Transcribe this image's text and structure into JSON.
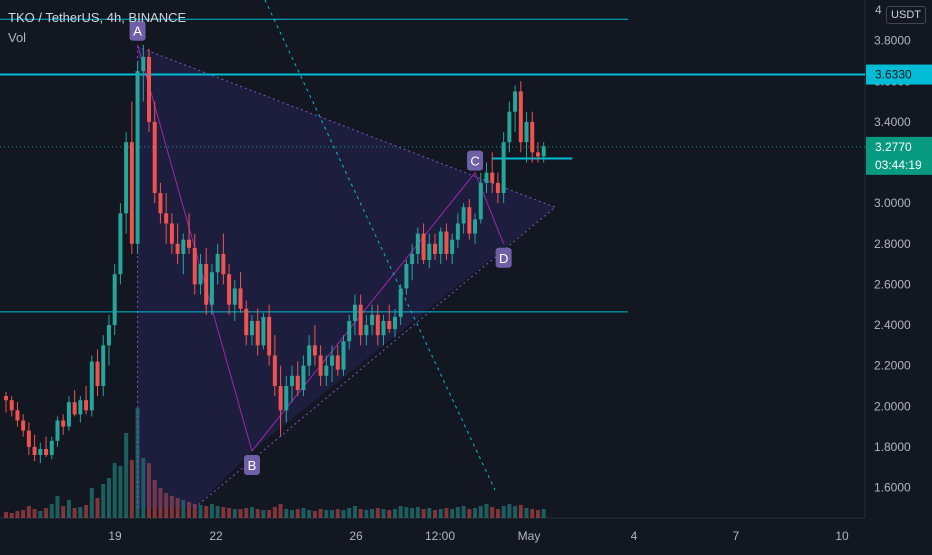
{
  "legend": {
    "title": "TKO / TetherUS, 4h, BINANCE",
    "vol": "Vol"
  },
  "currency": "USDT",
  "chart_data": {
    "type": "candlestick",
    "ylim": [
      1.45,
      4.0
    ],
    "y_ticks": [
      1.6,
      1.8,
      2.0,
      2.2,
      2.4,
      2.6,
      2.8,
      3.0,
      3.2,
      3.4,
      3.6,
      3.8
    ],
    "y_tick_labels": [
      "1.6000",
      "1.8000",
      "2.0000",
      "2.2000",
      "2.4000",
      "2.6000",
      "2.8000",
      "3.0000",
      "3.2000",
      "3.4000",
      "3.6000",
      "3.8000"
    ],
    "top_tick_label": "4",
    "x_ticks": [
      "19",
      "22",
      "26",
      "12:00",
      "May",
      "4",
      "7",
      "10"
    ],
    "current_price": {
      "label": "3.2770",
      "countdown": "03:44:19",
      "value": 3.277,
      "color": "#089981"
    },
    "level_price": {
      "label": "3.6330",
      "value": 3.633,
      "color": "#00bcd4"
    },
    "horizontal_levels": [
      3.905,
      3.633,
      2.465
    ],
    "pattern_points": [
      {
        "label": "A",
        "price": 3.78
      },
      {
        "label": "B",
        "price": 1.78
      },
      {
        "label": "C",
        "price": 3.15
      },
      {
        "label": "D",
        "price": 2.8
      }
    ],
    "colors": {
      "up": "#26a69a",
      "down": "#ef5350",
      "pattern": "#9c27b0",
      "levels": "#00bcd4"
    },
    "candles": [
      [
        2.05,
        2.07,
        1.97,
        2.03
      ],
      [
        2.03,
        2.05,
        1.95,
        1.98
      ],
      [
        1.98,
        2.02,
        1.9,
        1.93
      ],
      [
        1.93,
        1.96,
        1.85,
        1.88
      ],
      [
        1.88,
        1.92,
        1.76,
        1.8
      ],
      [
        1.8,
        1.86,
        1.73,
        1.76
      ],
      [
        1.76,
        1.82,
        1.72,
        1.79
      ],
      [
        1.79,
        1.85,
        1.75,
        1.76
      ],
      [
        1.76,
        1.85,
        1.74,
        1.83
      ],
      [
        1.83,
        1.95,
        1.8,
        1.93
      ],
      [
        1.93,
        1.96,
        1.86,
        1.9
      ],
      [
        1.9,
        2.05,
        1.88,
        2.02
      ],
      [
        2.02,
        2.08,
        1.95,
        1.96
      ],
      [
        1.96,
        2.05,
        1.92,
        2.03
      ],
      [
        2.03,
        2.1,
        1.96,
        1.98
      ],
      [
        1.98,
        2.25,
        1.95,
        2.22
      ],
      [
        2.22,
        2.28,
        2.05,
        2.1
      ],
      [
        2.1,
        2.35,
        2.05,
        2.3
      ],
      [
        2.3,
        2.45,
        2.2,
        2.4
      ],
      [
        2.4,
        2.7,
        2.35,
        2.65
      ],
      [
        2.65,
        3.0,
        2.6,
        2.95
      ],
      [
        2.95,
        3.35,
        2.85,
        3.3
      ],
      [
        3.3,
        3.5,
        2.75,
        2.8
      ],
      [
        2.8,
        3.7,
        2.75,
        3.65
      ],
      [
        3.65,
        3.78,
        3.5,
        3.72
      ],
      [
        3.72,
        3.76,
        3.35,
        3.4
      ],
      [
        3.4,
        3.5,
        3.0,
        3.05
      ],
      [
        3.05,
        3.1,
        2.9,
        2.95
      ],
      [
        2.95,
        3.05,
        2.8,
        2.9
      ],
      [
        2.9,
        2.95,
        2.75,
        2.8
      ],
      [
        2.8,
        2.9,
        2.7,
        2.75
      ],
      [
        2.75,
        2.85,
        2.65,
        2.82
      ],
      [
        2.82,
        2.95,
        2.75,
        2.78
      ],
      [
        2.78,
        2.85,
        2.55,
        2.6
      ],
      [
        2.6,
        2.75,
        2.55,
        2.7
      ],
      [
        2.7,
        2.78,
        2.45,
        2.5
      ],
      [
        2.5,
        2.7,
        2.45,
        2.66
      ],
      [
        2.66,
        2.8,
        2.6,
        2.75
      ],
      [
        2.75,
        2.85,
        2.6,
        2.65
      ],
      [
        2.65,
        2.7,
        2.45,
        2.5
      ],
      [
        2.5,
        2.62,
        2.42,
        2.58
      ],
      [
        2.58,
        2.66,
        2.46,
        2.48
      ],
      [
        2.48,
        2.52,
        2.3,
        2.35
      ],
      [
        2.35,
        2.45,
        2.3,
        2.42
      ],
      [
        2.42,
        2.48,
        2.25,
        2.3
      ],
      [
        2.3,
        2.46,
        2.28,
        2.44
      ],
      [
        2.44,
        2.5,
        2.2,
        2.25
      ],
      [
        2.25,
        2.35,
        2.05,
        2.1
      ],
      [
        2.1,
        2.2,
        1.85,
        1.98
      ],
      [
        1.98,
        2.15,
        1.92,
        2.1
      ],
      [
        2.1,
        2.2,
        2.02,
        2.15
      ],
      [
        2.15,
        2.22,
        2.05,
        2.08
      ],
      [
        2.08,
        2.25,
        2.05,
        2.2
      ],
      [
        2.2,
        2.35,
        2.15,
        2.3
      ],
      [
        2.3,
        2.4,
        2.2,
        2.25
      ],
      [
        2.25,
        2.3,
        2.1,
        2.15
      ],
      [
        2.15,
        2.25,
        2.1,
        2.2
      ],
      [
        2.2,
        2.3,
        2.12,
        2.25
      ],
      [
        2.25,
        2.3,
        2.15,
        2.18
      ],
      [
        2.18,
        2.35,
        2.15,
        2.32
      ],
      [
        2.32,
        2.45,
        2.28,
        2.42
      ],
      [
        2.42,
        2.55,
        2.35,
        2.5
      ],
      [
        2.5,
        2.55,
        2.3,
        2.35
      ],
      [
        2.35,
        2.45,
        2.3,
        2.4
      ],
      [
        2.4,
        2.5,
        2.35,
        2.45
      ],
      [
        2.45,
        2.5,
        2.3,
        2.35
      ],
      [
        2.35,
        2.45,
        2.3,
        2.42
      ],
      [
        2.42,
        2.5,
        2.36,
        2.38
      ],
      [
        2.38,
        2.48,
        2.34,
        2.44
      ],
      [
        2.44,
        2.6,
        2.4,
        2.58
      ],
      [
        2.58,
        2.72,
        2.55,
        2.7
      ],
      [
        2.7,
        2.8,
        2.62,
        2.75
      ],
      [
        2.75,
        2.88,
        2.7,
        2.85
      ],
      [
        2.85,
        2.9,
        2.7,
        2.72
      ],
      [
        2.72,
        2.85,
        2.68,
        2.8
      ],
      [
        2.8,
        2.85,
        2.72,
        2.75
      ],
      [
        2.75,
        2.88,
        2.7,
        2.86
      ],
      [
        2.86,
        2.9,
        2.72,
        2.75
      ],
      [
        2.75,
        2.85,
        2.7,
        2.82
      ],
      [
        2.82,
        2.95,
        2.78,
        2.9
      ],
      [
        2.9,
        3.0,
        2.85,
        2.98
      ],
      [
        2.98,
        3.02,
        2.82,
        2.85
      ],
      [
        2.85,
        2.95,
        2.8,
        2.92
      ],
      [
        2.92,
        3.15,
        2.9,
        3.1
      ],
      [
        3.1,
        3.2,
        3.05,
        3.15
      ],
      [
        3.15,
        3.25,
        3.05,
        3.1
      ],
      [
        3.1,
        3.15,
        3.0,
        3.05
      ],
      [
        3.05,
        3.35,
        3.0,
        3.3
      ],
      [
        3.3,
        3.5,
        3.25,
        3.45
      ],
      [
        3.45,
        3.58,
        3.35,
        3.55
      ],
      [
        3.55,
        3.6,
        3.25,
        3.3
      ],
      [
        3.3,
        3.45,
        3.2,
        3.4
      ],
      [
        3.4,
        3.45,
        3.2,
        3.25
      ],
      [
        3.25,
        3.3,
        3.2,
        3.23
      ],
      [
        3.23,
        3.3,
        3.2,
        3.28
      ]
    ],
    "volume": [
      6,
      5,
      7,
      8,
      12,
      9,
      7,
      10,
      14,
      22,
      12,
      18,
      10,
      11,
      13,
      30,
      20,
      34,
      40,
      55,
      52,
      85,
      58,
      110,
      60,
      55,
      38,
      30,
      25,
      22,
      20,
      18,
      16,
      14,
      13,
      12,
      14,
      12,
      11,
      10,
      9,
      9,
      10,
      11,
      9,
      8,
      8,
      11,
      14,
      9,
      8,
      9,
      10,
      8,
      7,
      9,
      8,
      8,
      9,
      8,
      10,
      12,
      9,
      8,
      9,
      10,
      9,
      8,
      9,
      12,
      11,
      10,
      11,
      9,
      10,
      8,
      9,
      10,
      9,
      11,
      12,
      9,
      10,
      12,
      14,
      11,
      9,
      12,
      14,
      12,
      13,
      10,
      9,
      8,
      9
    ]
  }
}
